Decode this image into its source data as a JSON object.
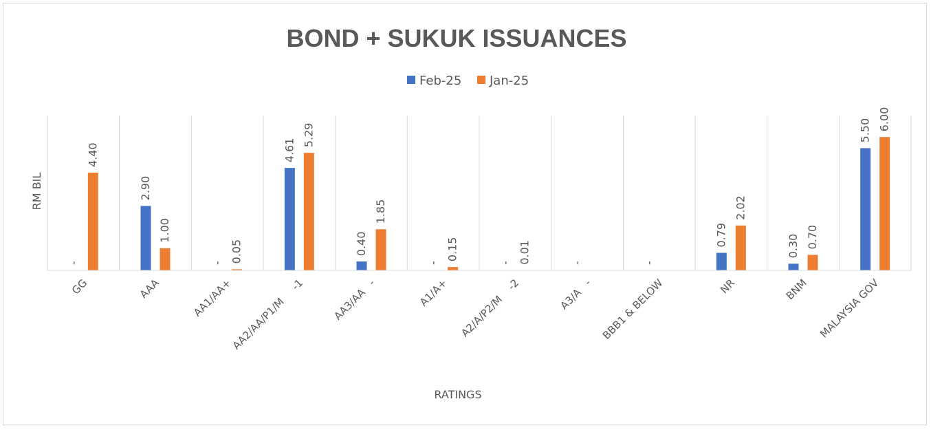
{
  "chart_data": {
    "type": "bar",
    "title": "BOND + SUKUK ISSUANCES",
    "xlabel": "RATINGS",
    "ylabel": "RM BIL",
    "categories": [
      "GG",
      "AAA",
      "AA1/AA+",
      "AA2/AA/P1/M     -1",
      "AA3/AA   -",
      "A1/A+",
      "A2/A/P2/M    -2",
      "A3/A   -",
      "BBB1 & BELOW",
      "NR",
      "BNM",
      "MALAYSIA GOV"
    ],
    "series": [
      {
        "name": "Feb-25",
        "color": "#4472c4",
        "values": [
          0,
          2.9,
          0,
          4.61,
          0.4,
          0,
          0,
          0,
          0,
          0.79,
          0.3,
          5.5
        ],
        "labels": [
          "-",
          "2.90",
          "-",
          "4.61",
          "0.40",
          "-",
          "-",
          "-",
          "-",
          "0.79",
          "0.30",
          "5.50"
        ]
      },
      {
        "name": "Jan-25",
        "color": "#ed7d31",
        "values": [
          4.4,
          1.0,
          0.05,
          5.29,
          1.85,
          0.15,
          0.01,
          0,
          0,
          2.02,
          0.7,
          6.0
        ],
        "labels": [
          "4.40",
          "1.00",
          "0.05",
          "5.29",
          "1.85",
          "0.15",
          "0.01",
          "",
          "",
          "2.02",
          "0.70",
          "6.00"
        ]
      }
    ],
    "ylim": [
      0,
      7
    ],
    "legend_position": "top",
    "grid": "vertical-category-separators"
  }
}
